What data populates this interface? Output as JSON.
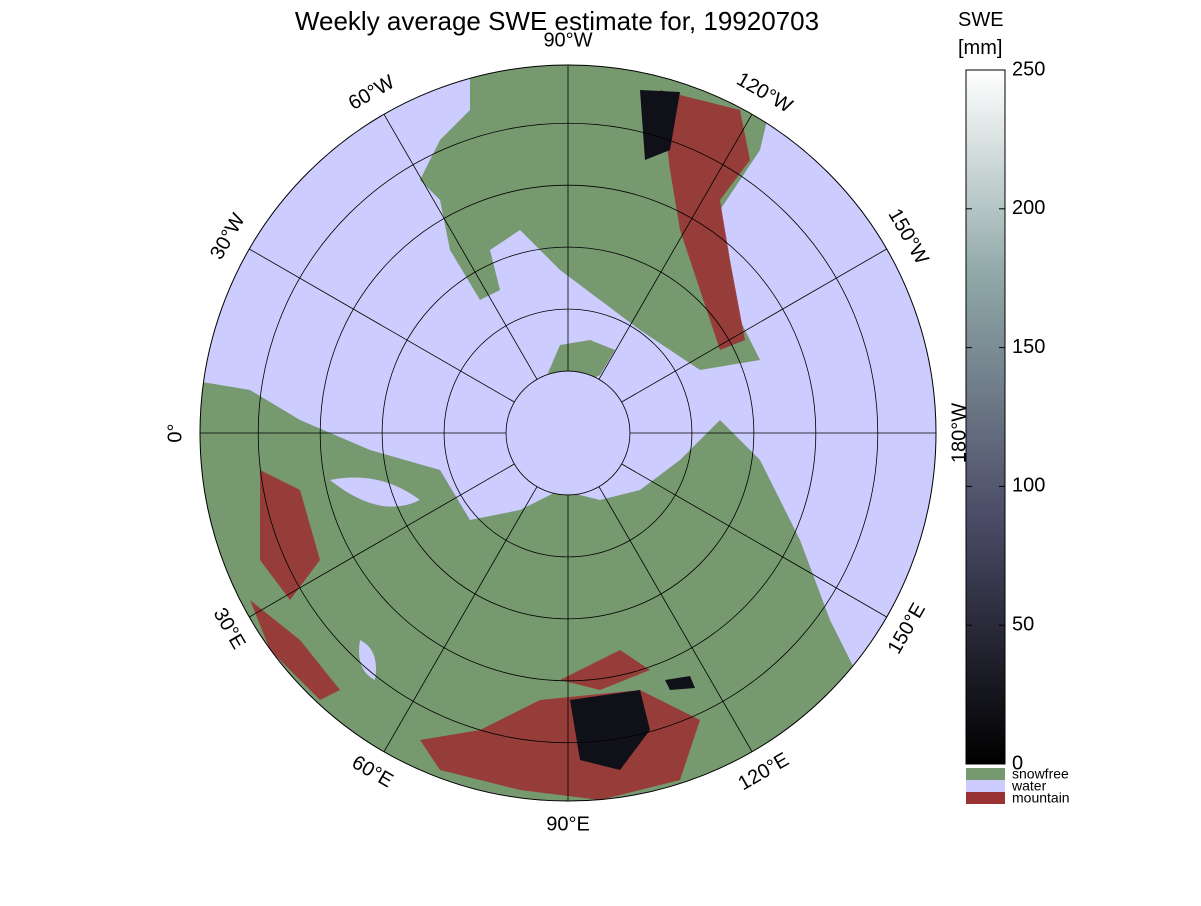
{
  "title": "Weekly average SWE estimate for, 19920703",
  "map": {
    "lon_ticks": [
      {
        "value": -90,
        "label": "90°W"
      },
      {
        "value": -60,
        "label": "60°W"
      },
      {
        "value": -30,
        "label": "30°W"
      },
      {
        "value": 0,
        "label": "0°"
      },
      {
        "value": -120,
        "label": "120°W"
      },
      {
        "value": -150,
        "label": "150°W"
      },
      {
        "value": 180,
        "label": "180°W"
      },
      {
        "value": 30,
        "label": "30°E"
      },
      {
        "value": 60,
        "label": "60°E"
      },
      {
        "value": 90,
        "label": "90°E"
      },
      {
        "value": 120,
        "label": "120°E"
      },
      {
        "value": 150,
        "label": "150°E"
      }
    ],
    "lat_lim": [
      90,
      30.6
    ],
    "lat_ticks": [
      80,
      70,
      60,
      50,
      40
    ]
  },
  "colorbar": {
    "title": [
      "SWE",
      "[mm]"
    ],
    "lim": [
      0,
      250
    ],
    "ticks": [
      0,
      50,
      100,
      150,
      200,
      250
    ]
  },
  "legend": [
    {
      "name": "snowfree",
      "color": "#779970"
    },
    {
      "name": "water",
      "color": "#ccccff"
    },
    {
      "name": "mountain",
      "color": "#993333"
    }
  ]
}
